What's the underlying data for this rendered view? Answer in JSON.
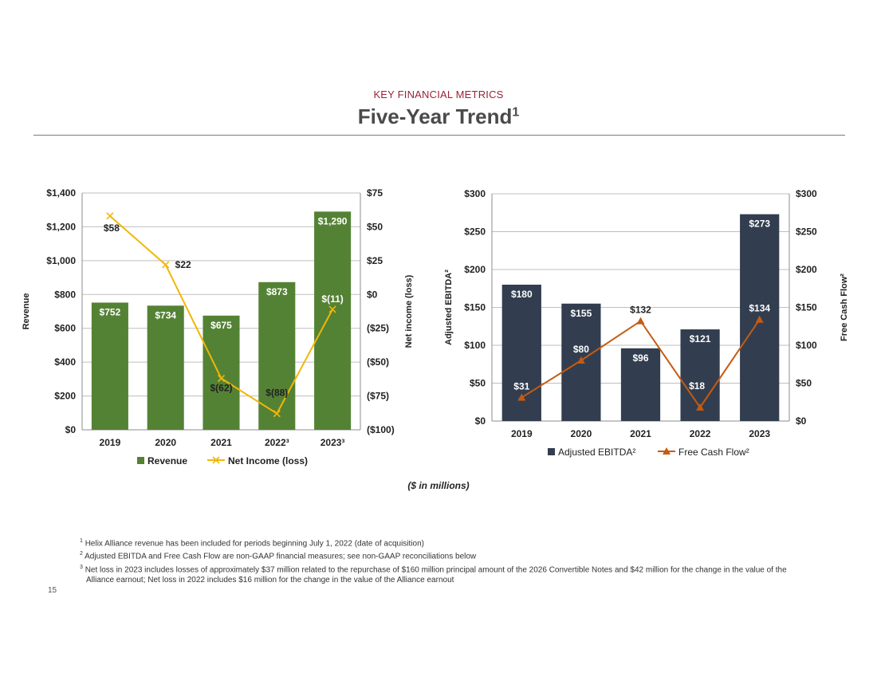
{
  "header": {
    "kicker": "KEY FINANCIAL METRICS",
    "title": "Five-Year Trend",
    "title_sup": "1"
  },
  "colors": {
    "revenue": "#548235",
    "net_income": "#f2b705",
    "ebitda": "#323e4f",
    "fcf": "#c55a11",
    "accent": "#9b2335"
  },
  "chart_data": [
    {
      "type": "bar",
      "categories": [
        "2019",
        "2020",
        "2021",
        "2022³",
        "2023³"
      ],
      "series": [
        {
          "name": "Revenue",
          "type": "bar",
          "axis": "left",
          "values": [
            752,
            734,
            675,
            873,
            1290
          ],
          "labels": [
            "$752",
            "$734",
            "$675",
            "$873",
            "$1,290"
          ]
        },
        {
          "name": "Net Income (loss)",
          "type": "line",
          "axis": "right",
          "values": [
            58,
            22,
            -62,
            -88,
            -11
          ],
          "labels": [
            "$58",
            "$22",
            "$(62)",
            "$(88)",
            "$(11)"
          ]
        }
      ],
      "ylabel": "Revenue",
      "y2label": "Net income (loss)",
      "ylim": [
        0,
        1400
      ],
      "y2lim": [
        -100,
        75
      ],
      "yticks": [
        "$0",
        "$200",
        "$400",
        "$600",
        "$800",
        "$1,000",
        "$1,200",
        "$1,400"
      ],
      "y2ticks": [
        "($100)",
        "($75)",
        "($50)",
        "($25)",
        "$0",
        "$25",
        "$50",
        "$75"
      ],
      "legend": [
        "Revenue",
        "Net Income (loss)"
      ],
      "legend_position": "bottom"
    },
    {
      "type": "bar",
      "categories": [
        "2019",
        "2020",
        "2021",
        "2022",
        "2023"
      ],
      "series": [
        {
          "name": "Adjusted EBITDA²",
          "type": "bar",
          "axis": "left",
          "values": [
            180,
            155,
            96,
            121,
            273
          ],
          "labels": [
            "$180",
            "$155",
            "$96",
            "$121",
            "$273"
          ]
        },
        {
          "name": "Free Cash Flow²",
          "type": "line",
          "axis": "right",
          "values": [
            31,
            80,
            132,
            18,
            134
          ],
          "labels": [
            "$31",
            "$80",
            "$132",
            "$18",
            "$134"
          ]
        }
      ],
      "ylabel": "Adjusted EBITDA²",
      "y2label": "Free Cash Flow²",
      "ylim": [
        0,
        300
      ],
      "y2lim": [
        0,
        300
      ],
      "yticks": [
        "$0",
        "$50",
        "$100",
        "$150",
        "$200",
        "$250",
        "$300"
      ],
      "y2ticks": [
        "$0",
        "$50",
        "$100",
        "$150",
        "$200",
        "$250",
        "$300"
      ],
      "legend": [
        "Adjusted EBITDA²",
        "Free Cash Flow²"
      ],
      "legend_position": "bottom"
    }
  ],
  "units_note": "($ in millions)",
  "footnotes": [
    {
      "num": "1",
      "text": "Helix Alliance revenue has been included for periods beginning July 1, 2022 (date of acquisition)"
    },
    {
      "num": "2",
      "text": "Adjusted EBITDA and Free Cash Flow are non-GAAP financial measures; see non-GAAP reconciliations below"
    },
    {
      "num": "3",
      "text": "Net loss in 2023 includes losses of approximately $37 million related to the repurchase of $160 million principal amount of the 2026 Convertible Notes and $42 million for the change in the value of the Alliance earnout; Net loss in 2022 includes $16 million for the change in the value of the Alliance earnout"
    }
  ],
  "page_number": "15"
}
